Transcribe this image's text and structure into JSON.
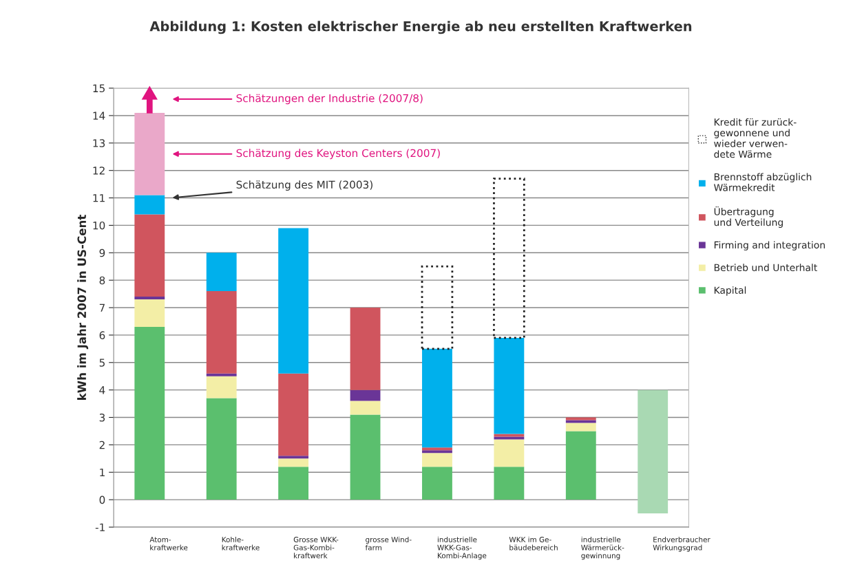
{
  "chart_data": {
    "type": "bar",
    "stacked": true,
    "title": "Abbildung 1: Kosten elektrischer Energie ab neu erstellten Kraftwerken",
    "ylabel": "kWh im Jahr 2007 in US-Cent",
    "categories": [
      "Atom-\nkraftwerke",
      "Kohle-\nkraftwerke",
      "Grosse WKK-\nGas-Kombi-\nkraftwerk",
      "grosse Wind-\nfarm",
      "industrielle\nWKK-Gas-\nKombi-Anlage",
      "WKK im Ge-\nbäudebereich",
      "industrielle\nWärmerück-\ngewinnung",
      "Endverbraucher\nWirkungsgrad"
    ],
    "series": [
      {
        "name": "Kapital",
        "color": "#5bbf6e",
        "values": [
          6.3,
          3.7,
          1.2,
          3.1,
          1.2,
          1.2,
          2.5,
          null
        ]
      },
      {
        "name": "Betrieb und Unterhalt",
        "color": "#f3eea6",
        "values": [
          1.0,
          0.8,
          0.3,
          0.5,
          0.5,
          1.0,
          0.3,
          null
        ]
      },
      {
        "name": "Firming and integration",
        "color": "#6a3597",
        "values": [
          0.1,
          0.1,
          0.1,
          0.4,
          0.1,
          0.1,
          0.1,
          null
        ]
      },
      {
        "name": "Übertragung\nund Verteilung",
        "color": "#d0555e",
        "values": [
          3.0,
          3.0,
          3.0,
          3.0,
          0.1,
          0.1,
          0.1,
          null
        ]
      },
      {
        "name": "Brennstoff abzüglich\nWärmekredit",
        "color": "#00b0ec",
        "values": [
          0.7,
          1.4,
          5.3,
          null,
          3.6,
          3.5,
          null,
          null
        ]
      },
      {
        "name": "Kredit für zurück-\ngewonnene und\nwieder verwen-\ndete Wärme",
        "color": "#222222",
        "line_style": "dotted",
        "values": [
          null,
          null,
          null,
          null,
          3.0,
          5.8,
          null,
          null
        ]
      },
      {
        "color": "#eaa8c9",
        "values": [
          3.0,
          null,
          null,
          null,
          null,
          null,
          null,
          null
        ]
      },
      {
        "color": "#a9d9b3",
        "base": [
          null,
          null,
          null,
          null,
          null,
          null,
          null,
          -0.5
        ],
        "values": [
          null,
          null,
          null,
          null,
          null,
          null,
          null,
          4.5
        ]
      }
    ],
    "ylim": [
      -1,
      15
    ],
    "yticks": [
      -1,
      0,
      1,
      2,
      3,
      4,
      5,
      6,
      7,
      8,
      9,
      10,
      11,
      12,
      13,
      14,
      15
    ],
    "grid": "y",
    "legend": "right",
    "annotations": [
      "Schätzungen der Industrie (2007/8)",
      "Schätzung des Keyston Centers (2007)",
      "Schätzung des MIT (2003)"
    ]
  }
}
